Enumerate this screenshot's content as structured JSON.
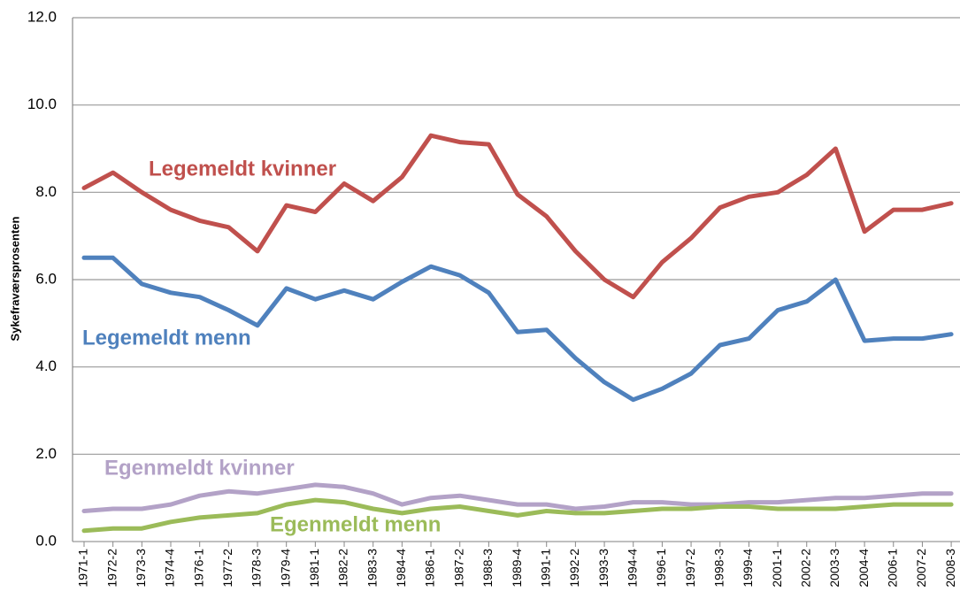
{
  "chart_data": {
    "type": "line",
    "y_label": "Sykefraværsprosenten",
    "categories": [
      "1971-1",
      "1972-2",
      "1973-3",
      "1974-4",
      "1976-1",
      "1977-2",
      "1978-3",
      "1979-4",
      "1981-1",
      "1982-2",
      "1983-3",
      "1984-4",
      "1986-1",
      "1987-2",
      "1988-3",
      "1989-4",
      "1991-1",
      "1992-2",
      "1993-3",
      "1994-4",
      "1996-1",
      "1997-2",
      "1998-3",
      "1999-4",
      "2001-1",
      "2002-2",
      "2003-3",
      "2004-4",
      "2006-1",
      "2007-2",
      "2008-3"
    ],
    "series": [
      {
        "name": "Legemeldt kvinner",
        "color": "#c0504d",
        "values": [
          8.1,
          8.45,
          8.0,
          7.6,
          7.35,
          7.2,
          6.65,
          7.7,
          7.55,
          8.2,
          7.8,
          8.35,
          9.3,
          9.15,
          9.1,
          7.95,
          7.45,
          6.65,
          6.0,
          5.6,
          6.4,
          6.95,
          7.65,
          7.9,
          8.0,
          8.4,
          9.0,
          7.1,
          7.6,
          7.6,
          7.75
        ]
      },
      {
        "name": "Legemeldt menn",
        "color": "#4f81bd",
        "values": [
          6.5,
          6.5,
          5.9,
          5.7,
          5.6,
          5.3,
          4.95,
          5.8,
          5.55,
          5.75,
          5.55,
          5.95,
          6.3,
          6.1,
          5.7,
          4.8,
          4.85,
          4.2,
          3.65,
          3.25,
          3.5,
          3.85,
          4.5,
          4.65,
          5.3,
          5.5,
          6.0,
          4.6,
          4.65,
          4.65,
          4.75
        ]
      },
      {
        "name": "Egenmeldt kvinner",
        "color": "#b3a2c7",
        "values": [
          0.7,
          0.75,
          0.75,
          0.85,
          1.05,
          1.15,
          1.1,
          1.2,
          1.3,
          1.25,
          1.1,
          0.85,
          1.0,
          1.05,
          0.95,
          0.85,
          0.85,
          0.75,
          0.8,
          0.9,
          0.9,
          0.85,
          0.85,
          0.9,
          0.9,
          0.95,
          1.0,
          1.0,
          1.05,
          1.1,
          1.1
        ]
      },
      {
        "name": "Egenmeldt menn",
        "color": "#9bbb59",
        "values": [
          0.25,
          0.3,
          0.3,
          0.45,
          0.55,
          0.6,
          0.65,
          0.85,
          0.95,
          0.9,
          0.75,
          0.65,
          0.75,
          0.8,
          0.7,
          0.6,
          0.7,
          0.65,
          0.65,
          0.7,
          0.75,
          0.75,
          0.8,
          0.8,
          0.75,
          0.75,
          0.75,
          0.8,
          0.85,
          0.85,
          0.85
        ]
      }
    ],
    "ylim": [
      0,
      12
    ],
    "yticks": [
      {
        "value": 0,
        "label": "0.0"
      },
      {
        "value": 2,
        "label": "2.0"
      },
      {
        "value": 4,
        "label": "4.0"
      },
      {
        "value": 6,
        "label": "6.0"
      },
      {
        "value": 8,
        "label": "8.0"
      },
      {
        "value": 10,
        "label": "10.0"
      },
      {
        "value": 12,
        "label": "12.0"
      }
    ],
    "grid": true
  }
}
